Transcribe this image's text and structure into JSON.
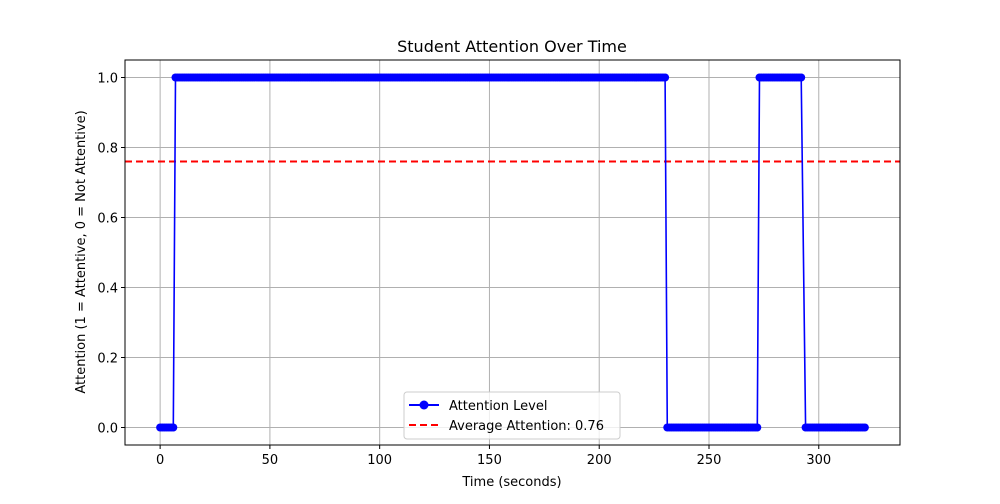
{
  "chart_data": {
    "type": "line",
    "title": "Student Attention Over Time",
    "xlabel": "Time (seconds)",
    "ylabel": "Attention (1 = Attentive, 0 = Not Attentive)",
    "xlim": [
      -16,
      337
    ],
    "ylim": [
      -0.05,
      1.05
    ],
    "xticks": [
      0,
      50,
      100,
      150,
      200,
      250,
      300
    ],
    "yticks": [
      0.0,
      0.2,
      0.4,
      0.6,
      0.8,
      1.0
    ],
    "ytick_labels": [
      "0.0",
      "0.2",
      "0.4",
      "0.6",
      "0.8",
      "1.0"
    ],
    "grid": true,
    "legend_position": "lower center",
    "series": [
      {
        "name": "Attention Level",
        "color": "#0000ff",
        "marker": "circle",
        "segments": [
          {
            "x_start": 0,
            "x_end": 6,
            "value": 0
          },
          {
            "x_start": 7,
            "x_end": 230,
            "value": 1
          },
          {
            "x_start": 231,
            "x_end": 272,
            "value": 0
          },
          {
            "x_start": 273,
            "x_end": 292,
            "value": 1
          },
          {
            "x_start": 294,
            "x_end": 321,
            "value": 0
          }
        ]
      }
    ],
    "reference_line": {
      "name": "Average Attention: 0.76",
      "value": 0.76,
      "color": "#ff0000",
      "style": "dashed"
    }
  }
}
